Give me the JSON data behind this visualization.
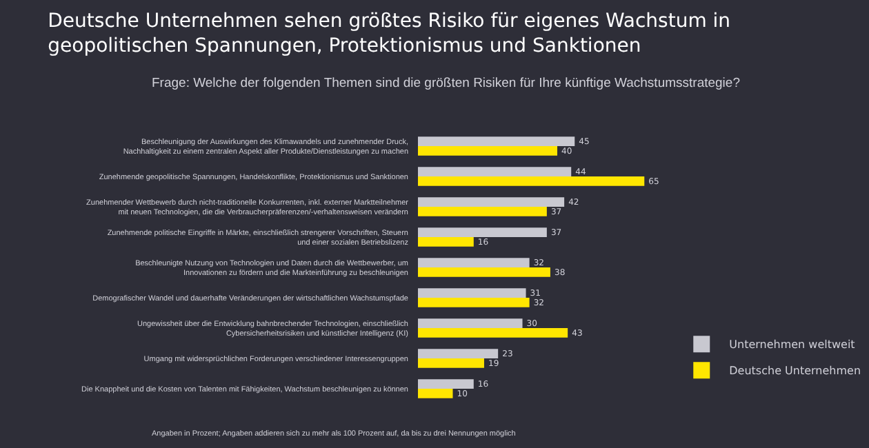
{
  "chart_data": {
    "type": "bar",
    "orientation": "horizontal",
    "title": "Deutsche Unternehmen sehen größtes Risiko für eigenes Wachstum in\ngeopolitischen Spannungen, Protektionismus und Sanktionen",
    "subtitle": "Frage: Welche der folgenden Themen sind die größten Risiken für Ihre künftige Wachstumsstrategie?",
    "categories": [
      "Beschleunigung der Auswirkungen des Klimawandels und zunehmender Druck,\nNachhaltigkeit zu einem zentralen Aspekt aller Produkte/Dienstleistungen zu machen",
      "Zunehmende geopolitische Spannungen, Handelskonflikte, Protektionismus und Sanktionen",
      "Zunehmender Wettbewerb durch nicht-traditionelle Konkurrenten, inkl. externer Marktteilnehmer\nmit neuen Technologien, die die Verbraucherpräferenzen/-verhaltensweisen verändern",
      "Zunehmende politische Eingriffe in Märkte, einschließlich strengerer Vorschriften, Steuern\nund einer sozialen Betriebslizenz",
      "Beschleunigte Nutzung von Technologien und Daten durch die Wettbewerber, um\nInnovationen zu fördern und die Markteinführung zu beschleunigen",
      "Demografischer Wandel und dauerhafte Veränderungen der wirtschaftlichen Wachstumspfade",
      "Ungewissheit über die Entwicklung bahnbrechender Technologien, einschließlich\nCybersicherheitsrisiken und künstlicher Intelligenz (KI)",
      "Umgang mit widersprüchlichen Forderungen verschiedener Interessengruppen",
      "Die Knappheit und die Kosten von Talenten mit Fähigkeiten, Wachstum beschleunigen zu können"
    ],
    "series": [
      {
        "name": "Unternehmen weltweit",
        "color": "#c8c8d0",
        "values": [
          45,
          44,
          42,
          37,
          32,
          31,
          30,
          23,
          16
        ]
      },
      {
        "name": "Deutsche Unternehmen",
        "color": "#ffe600",
        "values": [
          40,
          65,
          37,
          16,
          38,
          32,
          43,
          19,
          10
        ]
      }
    ],
    "data_labels": true,
    "legend": "bottom right",
    "annotations": [
      "Angaben in Prozent; Angaben addieren sich zu mehr als 100 Prozent auf, da bis zu drei Nennungen möglich"
    ]
  }
}
